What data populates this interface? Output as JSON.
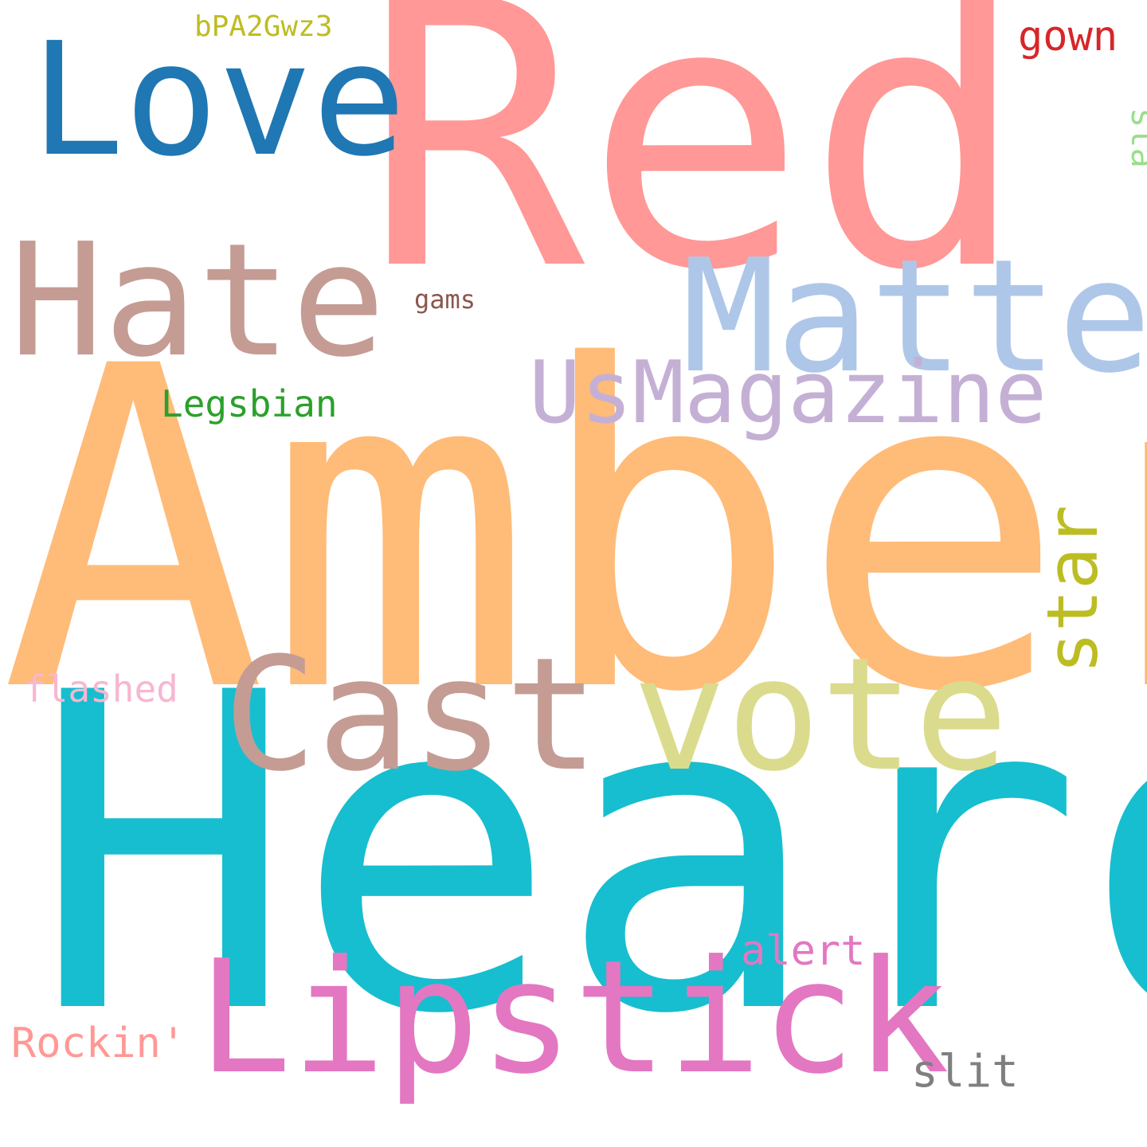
{
  "words": {
    "red": {
      "text": "Red",
      "color": "#ff9896"
    },
    "love": {
      "text": "Love",
      "color": "#1f77b4"
    },
    "bpa": {
      "text": "bPA2Gwz3",
      "color": "#bcbd22"
    },
    "gown": {
      "text": "gown",
      "color": "#d62728"
    },
    "sta": {
      "text": "sta",
      "color": "#98df8a"
    },
    "hate": {
      "text": "Hate",
      "color": "#c49c94"
    },
    "matte": {
      "text": "Matte",
      "color": "#aec7e8"
    },
    "gams": {
      "text": "gams",
      "color": "#8c564b"
    },
    "usmagazine": {
      "text": "UsMagazine",
      "color": "#c5b0d5"
    },
    "legsbian": {
      "text": "Legsbian",
      "color": "#2ca02c"
    },
    "amber": {
      "text": "Amber",
      "color": "#ffbb78"
    },
    "star": {
      "text": "star",
      "color": "#bcbd22"
    },
    "cast": {
      "text": "Cast",
      "color": "#c49c94"
    },
    "vote": {
      "text": "vote",
      "color": "#dbdb8d"
    },
    "flashed": {
      "text": "flashed",
      "color": "#f7b6d2"
    },
    "heard": {
      "text": "Heard",
      "color": "#17becf"
    },
    "alert": {
      "text": "alert",
      "color": "#e377c2"
    },
    "lipstick": {
      "text": "Lipstick",
      "color": "#e377c2"
    },
    "rockin": {
      "text": "Rockin'",
      "color": "#ff9896"
    },
    "slit": {
      "text": "slit",
      "color": "#7f7f7f"
    }
  }
}
